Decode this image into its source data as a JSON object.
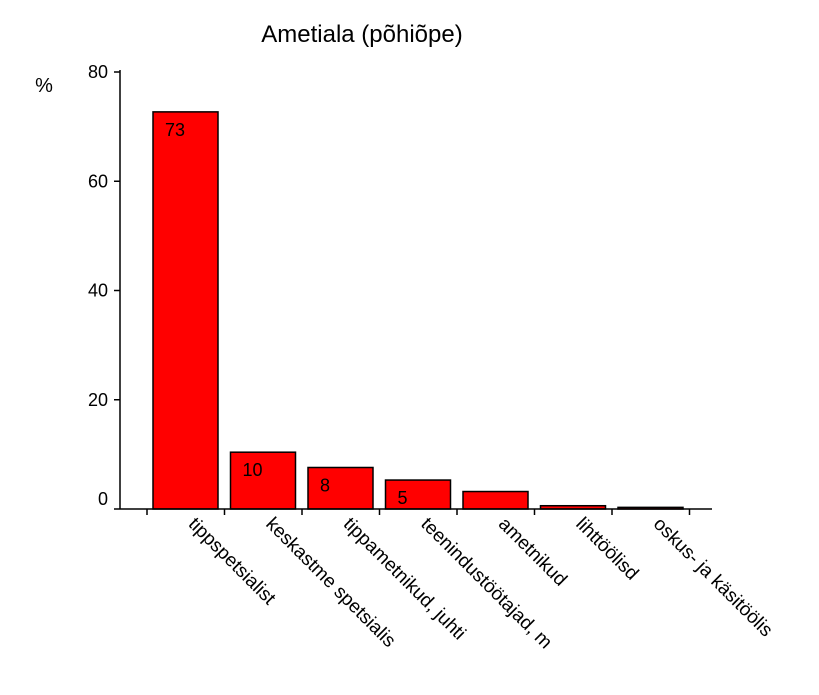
{
  "chart_data": {
    "type": "bar",
    "title": "Ametiala (põhiõpe)",
    "ylabel": "%",
    "xlabel": "",
    "ylim": [
      0,
      80
    ],
    "yticks": [
      0,
      20,
      40,
      60,
      80
    ],
    "grid": false,
    "legend": "none",
    "bar_color": "#ff0000",
    "categories": [
      "tippspetsialist",
      "keskastme spetsialis",
      "tippametnikud, juhti",
      "teenindustöötajad, m",
      "ametnikud",
      "lihttöölisd",
      "oskus- ja käsitöölis"
    ],
    "values": [
      72.7,
      10.4,
      7.6,
      5.3,
      3.2,
      0.6,
      0.3
    ],
    "data_labels": [
      "73",
      "10",
      "8",
      "5",
      "",
      "",
      ""
    ]
  }
}
